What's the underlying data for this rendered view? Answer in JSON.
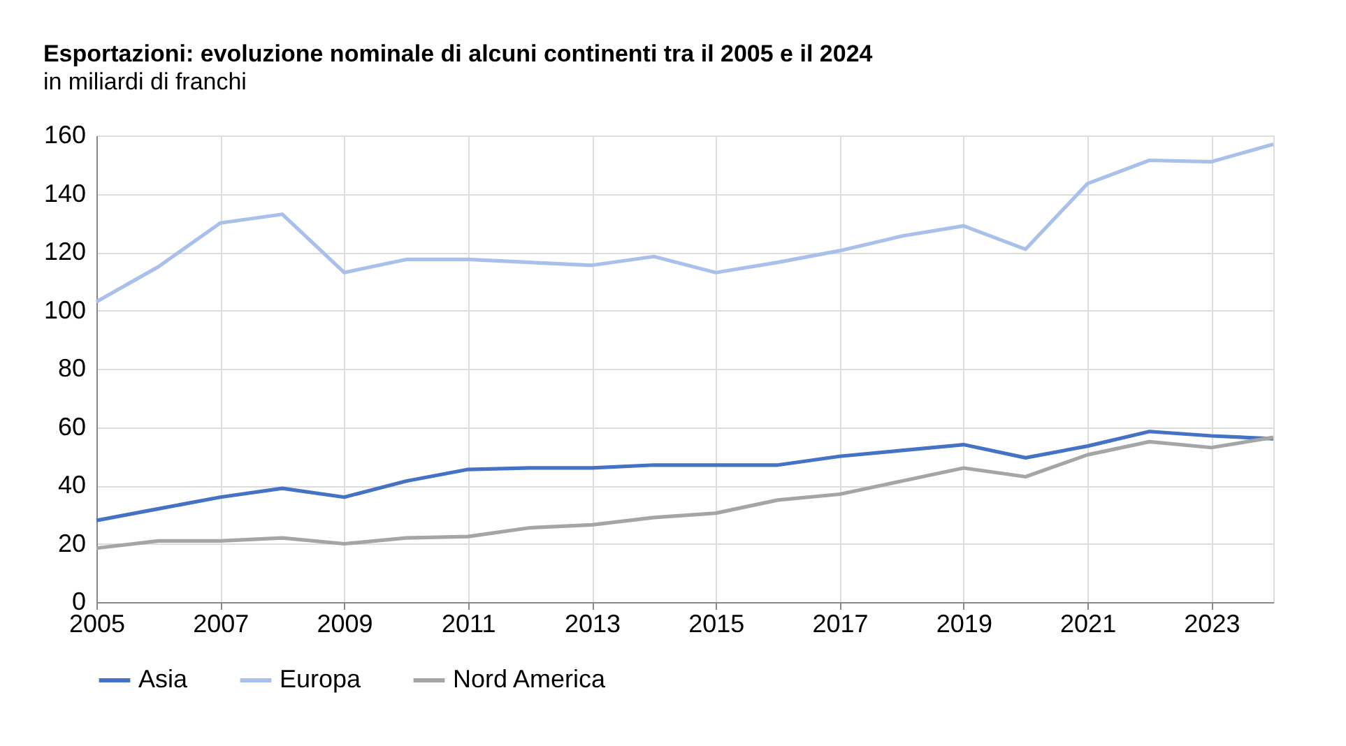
{
  "chart_data": {
    "type": "line",
    "title": "Esportazioni: evoluzione nominale di alcuni continenti tra il 2005 e il 2024",
    "subtitle": "in miliardi di franchi",
    "x": [
      2005,
      2006,
      2007,
      2008,
      2009,
      2010,
      2011,
      2012,
      2013,
      2014,
      2015,
      2016,
      2017,
      2018,
      2019,
      2020,
      2021,
      2022,
      2023,
      2024
    ],
    "series": [
      {
        "name": "Asia",
        "color": "#4472c4",
        "values": [
          28,
          32,
          36,
          39,
          36,
          41.5,
          45.5,
          46,
          46,
          47,
          47,
          47,
          50,
          52,
          54,
          49.5,
          53.5,
          58.5,
          57,
          56
        ]
      },
      {
        "name": "Europa",
        "color": "#a9c0ea",
        "values": [
          103,
          115,
          130,
          133,
          113,
          117.5,
          117.5,
          116.5,
          115.5,
          118.5,
          113,
          116.5,
          120.5,
          125.5,
          129,
          121,
          143.5,
          151.5,
          151,
          157
        ]
      },
      {
        "name": "Nord America",
        "color": "#a5a5a5",
        "values": [
          18.5,
          21,
          21,
          22,
          20,
          22,
          22.5,
          25.5,
          26.5,
          29,
          30.5,
          35,
          37,
          41.5,
          46,
          43,
          50.5,
          55,
          53,
          56.5
        ]
      }
    ],
    "xlim": [
      2005,
      2024
    ],
    "xticks": [
      2005,
      2007,
      2009,
      2011,
      2013,
      2015,
      2017,
      2019,
      2021,
      2023
    ],
    "ylim": [
      0,
      160
    ],
    "yticks": [
      0,
      20,
      40,
      60,
      80,
      100,
      120,
      140,
      160
    ],
    "grid": true,
    "legend": "bottom",
    "marker": "none",
    "line_style": "solid"
  }
}
